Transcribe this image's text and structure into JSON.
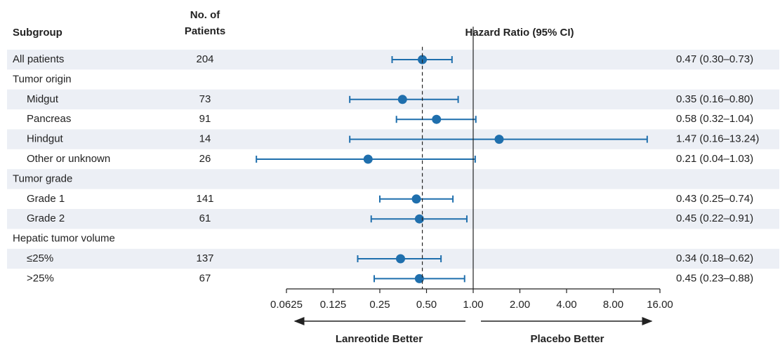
{
  "chart_data": {
    "type": "forest",
    "subgroup_header": "Subgroup",
    "patients_header": [
      "No. of",
      "Patients"
    ],
    "title": "Hazard Ratio (95% CI)",
    "color": "#1f6fad",
    "log_scale": true,
    "xlim": [
      0.0625,
      16
    ],
    "xticks": [
      0.0625,
      0.125,
      0.25,
      {
        "value": 0.5,
        "label": "0.50"
      },
      {
        "value": 1,
        "label": "1.00"
      },
      {
        "value": 2,
        "label": "2.00"
      },
      {
        "value": 4,
        "label": "4.00"
      },
      {
        "value": 8,
        "label": "8.00"
      },
      {
        "value": 16,
        "label": "16.00"
      }
    ],
    "left_label": "Lanreotide Better",
    "right_label": "Placebo Better",
    "rows": [
      {
        "label": "All patients",
        "level": 0,
        "patients": 204,
        "hr": 0.47,
        "lo": 0.3,
        "hi": 0.73,
        "ci_label": "0.47 (0.30–0.73)"
      },
      {
        "label": "Tumor origin",
        "level": 0
      },
      {
        "label": "Midgut",
        "level": 1,
        "patients": 73,
        "hr": 0.35,
        "lo": 0.16,
        "hi": 0.8,
        "ci_label": "0.35 (0.16–0.80)"
      },
      {
        "label": "Pancreas",
        "level": 1,
        "patients": 91,
        "hr": 0.58,
        "lo": 0.32,
        "hi": 1.04,
        "ci_label": "0.58 (0.32–1.04)"
      },
      {
        "label": "Hindgut",
        "level": 1,
        "patients": 14,
        "hr": 1.47,
        "lo": 0.16,
        "hi": 13.24,
        "ci_label": "1.47 (0.16–13.24)"
      },
      {
        "label": "Other or unknown",
        "level": 1,
        "patients": 26,
        "hr": 0.21,
        "lo": 0.04,
        "hi": 1.03,
        "ci_label": "0.21 (0.04–1.03)"
      },
      {
        "label": "Tumor grade",
        "level": 0
      },
      {
        "label": "Grade 1",
        "level": 1,
        "patients": 141,
        "hr": 0.43,
        "lo": 0.25,
        "hi": 0.74,
        "ci_label": "0.43 (0.25–0.74)"
      },
      {
        "label": "Grade 2",
        "level": 1,
        "patients": 61,
        "hr": 0.45,
        "lo": 0.22,
        "hi": 0.91,
        "ci_label": "0.45 (0.22–0.91)"
      },
      {
        "label": "Hepatic tumor volume",
        "level": 0
      },
      {
        "label": "≤25%",
        "level": 1,
        "patients": 137,
        "hr": 0.34,
        "lo": 0.18,
        "hi": 0.62,
        "ci_label": "0.34 (0.18–0.62)"
      },
      {
        "label": ">25%",
        "level": 1,
        "patients": 67,
        "hr": 0.45,
        "lo": 0.23,
        "hi": 0.88,
        "ci_label": "0.45 (0.23–0.88)"
      }
    ]
  }
}
